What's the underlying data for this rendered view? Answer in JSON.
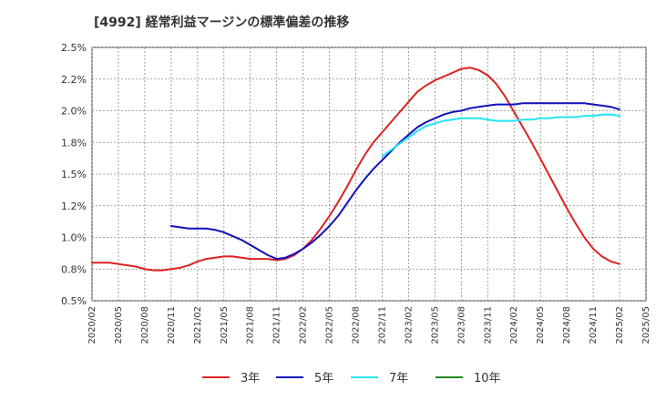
{
  "title": "[4992]  経常利益マージンの標準偏差の推移",
  "chart_data": {
    "type": "line",
    "title": "[4992]  経常利益マージンの標準偏差の推移",
    "xlabel": "",
    "ylabel": "",
    "ylim": [
      0.5,
      2.5
    ],
    "y_ticks": [
      {
        "value": 0.5,
        "label": "0.5%"
      },
      {
        "value": 0.75,
        "label": "0.8%"
      },
      {
        "value": 1.0,
        "label": "1.0%"
      },
      {
        "value": 1.25,
        "label": "1.2%"
      },
      {
        "value": 1.5,
        "label": "1.5%"
      },
      {
        "value": 1.75,
        "label": "1.8%"
      },
      {
        "value": 2.0,
        "label": "2.0%"
      },
      {
        "value": 2.25,
        "label": "2.2%"
      },
      {
        "value": 2.5,
        "label": "2.5%"
      }
    ],
    "x_ticks": [
      "2020/02",
      "2020/05",
      "2020/08",
      "2020/11",
      "2021/02",
      "2021/05",
      "2021/08",
      "2021/11",
      "2022/02",
      "2022/05",
      "2022/08",
      "2022/11",
      "2023/02",
      "2023/05",
      "2023/08",
      "2023/11",
      "2024/02",
      "2024/05",
      "2024/08",
      "2024/11",
      "2025/02",
      "2025/05"
    ],
    "grid": true,
    "legend_position": "bottom",
    "series": [
      {
        "name": "3年",
        "color": "#dd2222",
        "points": [
          [
            "2020/02",
            0.8
          ],
          [
            "2020/03",
            0.8
          ],
          [
            "2020/04",
            0.8
          ],
          [
            "2020/05",
            0.79
          ],
          [
            "2020/06",
            0.78
          ],
          [
            "2020/07",
            0.77
          ],
          [
            "2020/08",
            0.75
          ],
          [
            "2020/09",
            0.74
          ],
          [
            "2020/10",
            0.74
          ],
          [
            "2020/11",
            0.75
          ],
          [
            "2020/12",
            0.76
          ],
          [
            "2021/01",
            0.78
          ],
          [
            "2021/02",
            0.81
          ],
          [
            "2021/03",
            0.83
          ],
          [
            "2021/04",
            0.84
          ],
          [
            "2021/05",
            0.85
          ],
          [
            "2021/06",
            0.85
          ],
          [
            "2021/07",
            0.84
          ],
          [
            "2021/08",
            0.83
          ],
          [
            "2021/09",
            0.83
          ],
          [
            "2021/10",
            0.83
          ],
          [
            "2021/11",
            0.82
          ],
          [
            "2021/12",
            0.83
          ],
          [
            "2022/01",
            0.86
          ],
          [
            "2022/02",
            0.91
          ],
          [
            "2022/03",
            0.98
          ],
          [
            "2022/04",
            1.07
          ],
          [
            "2022/05",
            1.17
          ],
          [
            "2022/06",
            1.28
          ],
          [
            "2022/07",
            1.4
          ],
          [
            "2022/08",
            1.53
          ],
          [
            "2022/09",
            1.65
          ],
          [
            "2022/10",
            1.75
          ],
          [
            "2022/11",
            1.83
          ],
          [
            "2022/12",
            1.91
          ],
          [
            "2023/01",
            1.99
          ],
          [
            "2023/02",
            2.07
          ],
          [
            "2023/03",
            2.15
          ],
          [
            "2023/04",
            2.2
          ],
          [
            "2023/05",
            2.24
          ],
          [
            "2023/06",
            2.27
          ],
          [
            "2023/07",
            2.3
          ],
          [
            "2023/08",
            2.33
          ],
          [
            "2023/09",
            2.34
          ],
          [
            "2023/10",
            2.32
          ],
          [
            "2023/11",
            2.28
          ],
          [
            "2023/12",
            2.21
          ],
          [
            "2024/01",
            2.11
          ],
          [
            "2024/02",
            1.99
          ],
          [
            "2024/03",
            1.87
          ],
          [
            "2024/04",
            1.75
          ],
          [
            "2024/05",
            1.62
          ],
          [
            "2024/06",
            1.49
          ],
          [
            "2024/07",
            1.36
          ],
          [
            "2024/08",
            1.23
          ],
          [
            "2024/09",
            1.11
          ],
          [
            "2024/10",
            1.0
          ],
          [
            "2024/11",
            0.91
          ],
          [
            "2024/12",
            0.85
          ],
          [
            "2025/01",
            0.81
          ],
          [
            "2025/02",
            0.79
          ]
        ]
      },
      {
        "name": "5年",
        "color": "#1111bb",
        "points": [
          [
            "2020/11",
            1.09
          ],
          [
            "2020/12",
            1.08
          ],
          [
            "2021/01",
            1.07
          ],
          [
            "2021/02",
            1.07
          ],
          [
            "2021/03",
            1.07
          ],
          [
            "2021/04",
            1.06
          ],
          [
            "2021/05",
            1.04
          ],
          [
            "2021/06",
            1.01
          ],
          [
            "2021/07",
            0.98
          ],
          [
            "2021/08",
            0.94
          ],
          [
            "2021/09",
            0.9
          ],
          [
            "2021/10",
            0.86
          ],
          [
            "2021/11",
            0.83
          ],
          [
            "2021/12",
            0.84
          ],
          [
            "2022/01",
            0.87
          ],
          [
            "2022/02",
            0.91
          ],
          [
            "2022/03",
            0.96
          ],
          [
            "2022/04",
            1.02
          ],
          [
            "2022/05",
            1.09
          ],
          [
            "2022/06",
            1.17
          ],
          [
            "2022/07",
            1.27
          ],
          [
            "2022/08",
            1.37
          ],
          [
            "2022/09",
            1.46
          ],
          [
            "2022/10",
            1.54
          ],
          [
            "2022/11",
            1.61
          ],
          [
            "2022/12",
            1.68
          ],
          [
            "2023/01",
            1.75
          ],
          [
            "2023/02",
            1.81
          ],
          [
            "2023/03",
            1.87
          ],
          [
            "2023/04",
            1.91
          ],
          [
            "2023/05",
            1.94
          ],
          [
            "2023/06",
            1.97
          ],
          [
            "2023/07",
            1.99
          ],
          [
            "2023/08",
            2.0
          ],
          [
            "2023/09",
            2.02
          ],
          [
            "2023/10",
            2.03
          ],
          [
            "2023/11",
            2.04
          ],
          [
            "2023/12",
            2.05
          ],
          [
            "2024/01",
            2.05
          ],
          [
            "2024/02",
            2.05
          ],
          [
            "2024/03",
            2.06
          ],
          [
            "2024/04",
            2.06
          ],
          [
            "2024/05",
            2.06
          ],
          [
            "2024/06",
            2.06
          ],
          [
            "2024/07",
            2.06
          ],
          [
            "2024/08",
            2.06
          ],
          [
            "2024/09",
            2.06
          ],
          [
            "2024/10",
            2.06
          ],
          [
            "2024/11",
            2.05
          ],
          [
            "2024/12",
            2.04
          ],
          [
            "2025/01",
            2.03
          ],
          [
            "2025/02",
            2.01
          ]
        ]
      },
      {
        "name": "7年",
        "color": "#22e6f2",
        "points": [
          [
            "2022/11",
            1.64
          ],
          [
            "2022/12",
            1.69
          ],
          [
            "2023/01",
            1.74
          ],
          [
            "2023/02",
            1.79
          ],
          [
            "2023/03",
            1.84
          ],
          [
            "2023/04",
            1.88
          ],
          [
            "2023/05",
            1.9
          ],
          [
            "2023/06",
            1.92
          ],
          [
            "2023/07",
            1.93
          ],
          [
            "2023/08",
            1.94
          ],
          [
            "2023/09",
            1.94
          ],
          [
            "2023/10",
            1.94
          ],
          [
            "2023/11",
            1.93
          ],
          [
            "2023/12",
            1.92
          ],
          [
            "2024/01",
            1.92
          ],
          [
            "2024/02",
            1.92
          ],
          [
            "2024/03",
            1.93
          ],
          [
            "2024/04",
            1.93
          ],
          [
            "2024/05",
            1.94
          ],
          [
            "2024/06",
            1.94
          ],
          [
            "2024/07",
            1.95
          ],
          [
            "2024/08",
            1.95
          ],
          [
            "2024/09",
            1.95
          ],
          [
            "2024/10",
            1.96
          ],
          [
            "2024/11",
            1.96
          ],
          [
            "2024/12",
            1.97
          ],
          [
            "2025/01",
            1.97
          ],
          [
            "2025/02",
            1.96
          ]
        ]
      },
      {
        "name": "10年",
        "color": "#228822",
        "points": []
      }
    ]
  }
}
